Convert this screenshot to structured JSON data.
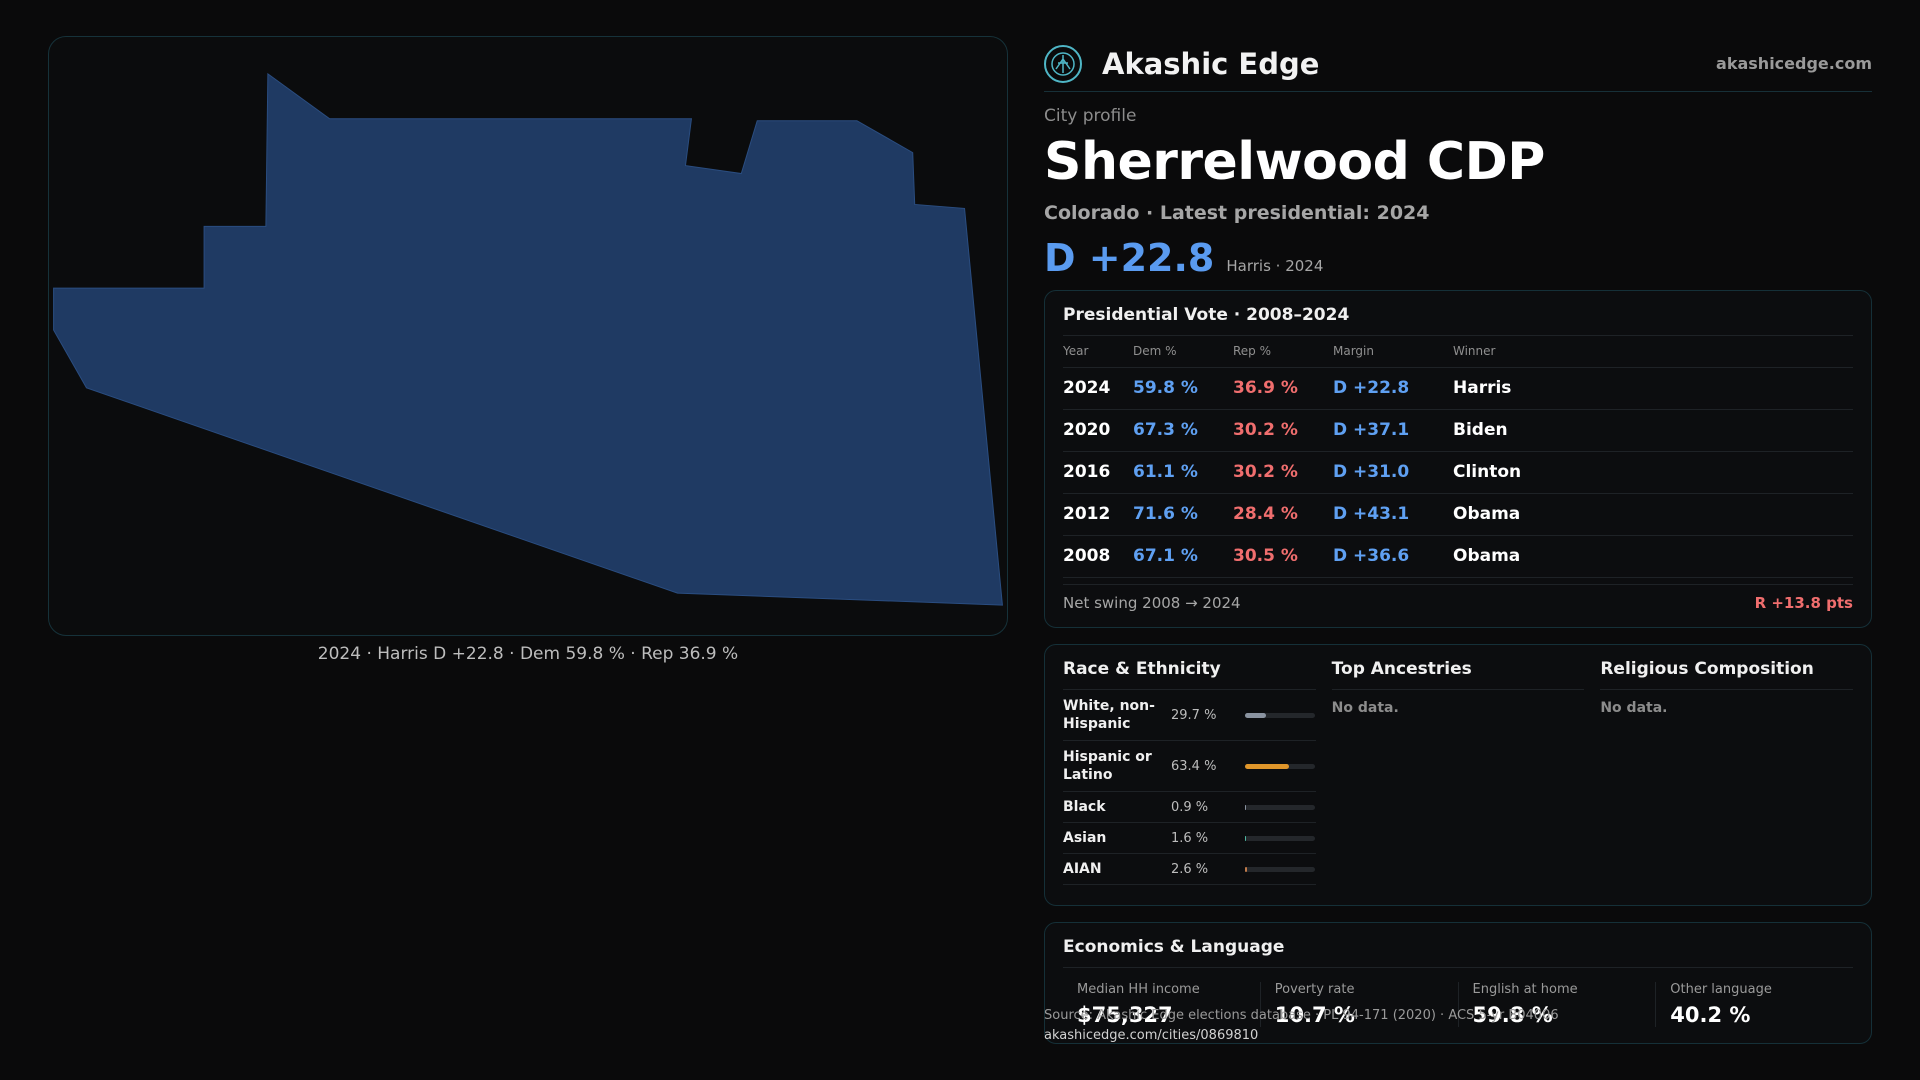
{
  "brand": {
    "name": "Akashic Edge",
    "url": "akashicedge.com",
    "logo_icon": "akashic-logo-icon",
    "accent_color": "#4fb6c6"
  },
  "map": {
    "fill_color": "#1f3a63",
    "caption": "2024 · Harris D +22.8 · Dem 59.8 % · Rep 36.9 %"
  },
  "profile": {
    "kicker": "City profile",
    "city_name": "Sherrelwood CDP",
    "subtitle": "Colorado · Latest presidential: 2024",
    "margin": "D +22.8",
    "margin_note": "Harris · 2024"
  },
  "presidential": {
    "title": "Presidential Vote · 2008–2024",
    "columns": [
      "Year",
      "Dem %",
      "Rep %",
      "Margin",
      "Winner"
    ],
    "rows": [
      {
        "year": "2024",
        "dem": "59.8 %",
        "rep": "36.9 %",
        "margin": "D +22.8",
        "winner": "Harris"
      },
      {
        "year": "2020",
        "dem": "67.3 %",
        "rep": "30.2 %",
        "margin": "D +37.1",
        "winner": "Biden"
      },
      {
        "year": "2016",
        "dem": "61.1 %",
        "rep": "30.2 %",
        "margin": "D +31.0",
        "winner": "Clinton"
      },
      {
        "year": "2012",
        "dem": "71.6 %",
        "rep": "28.4 %",
        "margin": "D +43.1",
        "winner": "Obama"
      },
      {
        "year": "2008",
        "dem": "67.1 %",
        "rep": "30.5 %",
        "margin": "D +36.6",
        "winner": "Obama"
      }
    ],
    "swing_label": "Net swing 2008 → 2024",
    "swing_value": "R +13.8 pts"
  },
  "demographics": {
    "race_title": "Race & Ethnicity",
    "race": [
      {
        "label": "White, non-Hispanic",
        "value": "29.7 %",
        "share": 0.297,
        "color": "#8a93a0"
      },
      {
        "label": "Hispanic or Latino",
        "value": "63.4 %",
        "share": 0.634,
        "color": "#e0962a"
      },
      {
        "label": "Black",
        "value": "0.9 %",
        "share": 0.009,
        "color": "#8a93a0"
      },
      {
        "label": "Asian",
        "value": "1.6 %",
        "share": 0.016,
        "color": "#4fb6a0"
      },
      {
        "label": "AIAN",
        "value": "2.6 %",
        "share": 0.026,
        "color": "#c07a4a"
      }
    ],
    "ancestry_title": "Top Ancestries",
    "ancestry_empty": "No data.",
    "religion_title": "Religious Composition",
    "religion_empty": "No data."
  },
  "economics": {
    "title": "Economics & Language",
    "items": [
      {
        "label": "Median HH income",
        "value": "$75,327"
      },
      {
        "label": "Poverty rate",
        "value": "10.7 %"
      },
      {
        "label": "English at home",
        "value": "59.8 %"
      },
      {
        "label": "Other language",
        "value": "40.2 %"
      }
    ]
  },
  "footer": {
    "source": "Source: Akashic Edge elections database · PL 94-171 (2020) · ACS 5-yr B04006",
    "url": "akashicedge.com/cities/0869810"
  }
}
